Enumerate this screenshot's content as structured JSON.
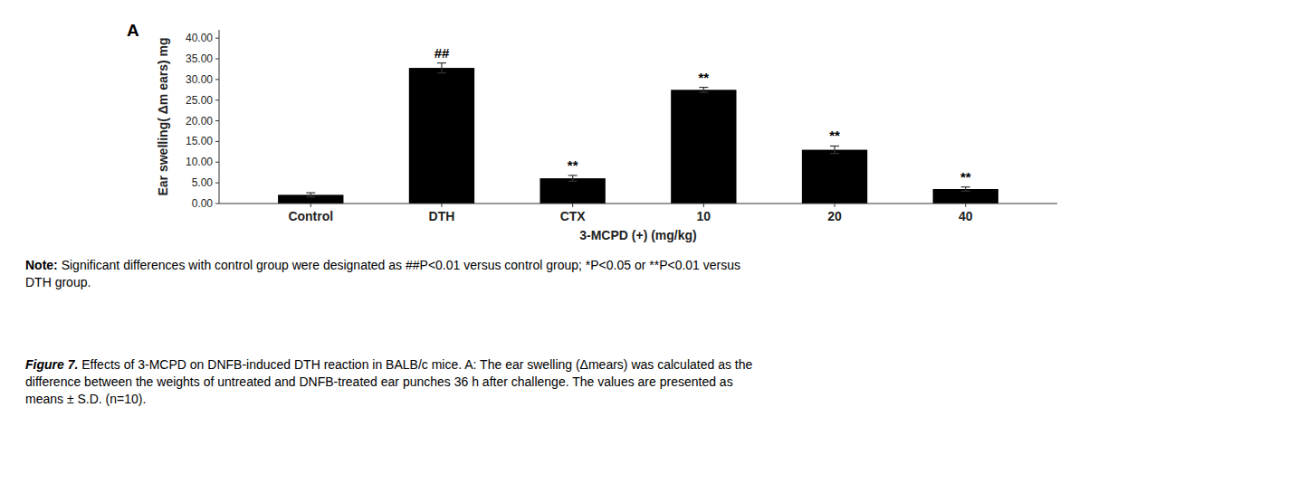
{
  "chart_data": {
    "type": "bar",
    "categories": [
      "Control",
      "DTH",
      "CTX",
      "10",
      "20",
      "40"
    ],
    "values": [
      2.1,
      32.8,
      6.1,
      27.5,
      13.0,
      3.5
    ],
    "errors": [
      0.5,
      1.2,
      0.7,
      0.6,
      0.9,
      0.5
    ],
    "color": "#000000",
    "ylim": [
      0,
      42
    ],
    "yticks": [
      {
        "value": 0.0,
        "label": "0.00"
      },
      {
        "value": 5.0,
        "label": "5.00"
      },
      {
        "value": 10.0,
        "label": "10.00"
      },
      {
        "value": 15.0,
        "label": "15.00"
      },
      {
        "value": 20.0,
        "label": "20.00"
      },
      {
        "value": 25.0,
        "label": "25.00"
      },
      {
        "value": 30.0,
        "label": "30.00"
      },
      {
        "value": 35.0,
        "label": "35.00"
      },
      {
        "value": 40.0,
        "label": "40.00"
      }
    ],
    "xlabel": "3-MCPD (+) (mg/kg)",
    "ylabel": "Ear swelling( Δm ears) mg",
    "grid": false,
    "annotations": [
      {
        "text": "##",
        "category": "DTH"
      },
      {
        "text": "**",
        "category": "CTX"
      },
      {
        "text": "**",
        "category": "10"
      },
      {
        "text": "**",
        "category": "20"
      },
      {
        "text": "**",
        "category": "40"
      }
    ],
    "panel_label": "A",
    "note": {
      "bold": "Note:",
      "text": " Significant differences with control group were designated as ##P<0.01 versus control group; *P<0.05 or **P<0.01 versus\nDTH group."
    },
    "caption": {
      "bold": "Figure 7.",
      "text": " Effects of 3-MCPD on DNFB-induced DTH reaction in BALB/c mice. A: The ear swelling (Δmears) was calculated as the\ndifference between the weights of untreated and DNFB-treated ear punches 36 h after challenge. The values are presented as\nmeans ± S.D. (n=10)."
    }
  }
}
